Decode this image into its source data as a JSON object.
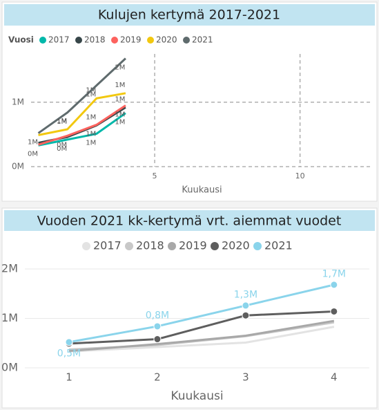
{
  "chart_data": [
    {
      "type": "line",
      "title": "Kulujen kertymä 2017-2021",
      "legend_title": "Vuosi",
      "legend_position": "top-left",
      "x_label": "Kuukausi",
      "x": [
        1,
        2,
        3,
        4
      ],
      "xlim": [
        0.75,
        12.5
      ],
      "xticks": [
        5,
        10
      ],
      "ylim": [
        0,
        1750000
      ],
      "yticks": [
        {
          "value": 0,
          "label": "0M"
        },
        {
          "value": 1000000,
          "label": "1M"
        }
      ],
      "grid": true,
      "grid_style": "dashed",
      "series": [
        {
          "name": "2017",
          "color": "#01b8aa",
          "values": [
            330000,
            420000,
            510000,
            830000
          ],
          "value_labels": [
            null,
            "0M",
            "1M",
            "1M"
          ]
        },
        {
          "name": "2018",
          "color": "#374649",
          "values": [
            370000,
            460000,
            640000,
            920000
          ],
          "value_labels": [
            null,
            null,
            "1M",
            "1M"
          ]
        },
        {
          "name": "2019",
          "color": "#fd625e",
          "values": [
            340000,
            480000,
            650000,
            950000
          ],
          "value_labels": [
            "0M",
            "0M",
            "1M",
            "1M"
          ]
        },
        {
          "name": "2020",
          "color": "#f2c80f",
          "values": [
            490000,
            580000,
            1060000,
            1140000
          ],
          "value_labels": [
            null,
            "1M",
            "1M",
            "1M"
          ]
        },
        {
          "name": "2021",
          "color": "#5f6b6d",
          "values": [
            520000,
            840000,
            1260000,
            1680000
          ],
          "value_labels": [
            "1M",
            "1M",
            "1M",
            "2M"
          ]
        }
      ]
    },
    {
      "type": "line",
      "title": "Vuoden 2021 kk-kertymä vrt. aiemmat vuodet",
      "legend_position": "top",
      "x_label": "Kuukausi",
      "x": [
        1,
        2,
        3,
        4
      ],
      "xlim": [
        0.5,
        4.4
      ],
      "xticks": [
        1,
        2,
        3,
        4
      ],
      "ylim": [
        0,
        2000000
      ],
      "yticks": [
        {
          "value": 0,
          "label": "0M"
        },
        {
          "value": 1000000,
          "label": "1M"
        },
        {
          "value": 2000000,
          "label": "2M"
        }
      ],
      "grid": true,
      "grid_style": "solid",
      "series": [
        {
          "name": "2017",
          "color": "#e3e3e3",
          "values": [
            330000,
            420000,
            510000,
            830000
          ]
        },
        {
          "name": "2018",
          "color": "#c8c8c8",
          "values": [
            370000,
            460000,
            640000,
            920000
          ]
        },
        {
          "name": "2019",
          "color": "#a8a8a8",
          "values": [
            340000,
            480000,
            650000,
            950000
          ]
        },
        {
          "name": "2020",
          "color": "#5e5e5e",
          "values": [
            490000,
            580000,
            1060000,
            1140000
          ],
          "marker": true
        },
        {
          "name": "2021",
          "color": "#8ad4eb",
          "values": [
            520000,
            840000,
            1260000,
            1680000
          ],
          "marker": true,
          "value_labels": [
            "0,5M",
            "0,8M",
            "1,3M",
            "1,7M"
          ]
        }
      ]
    }
  ]
}
